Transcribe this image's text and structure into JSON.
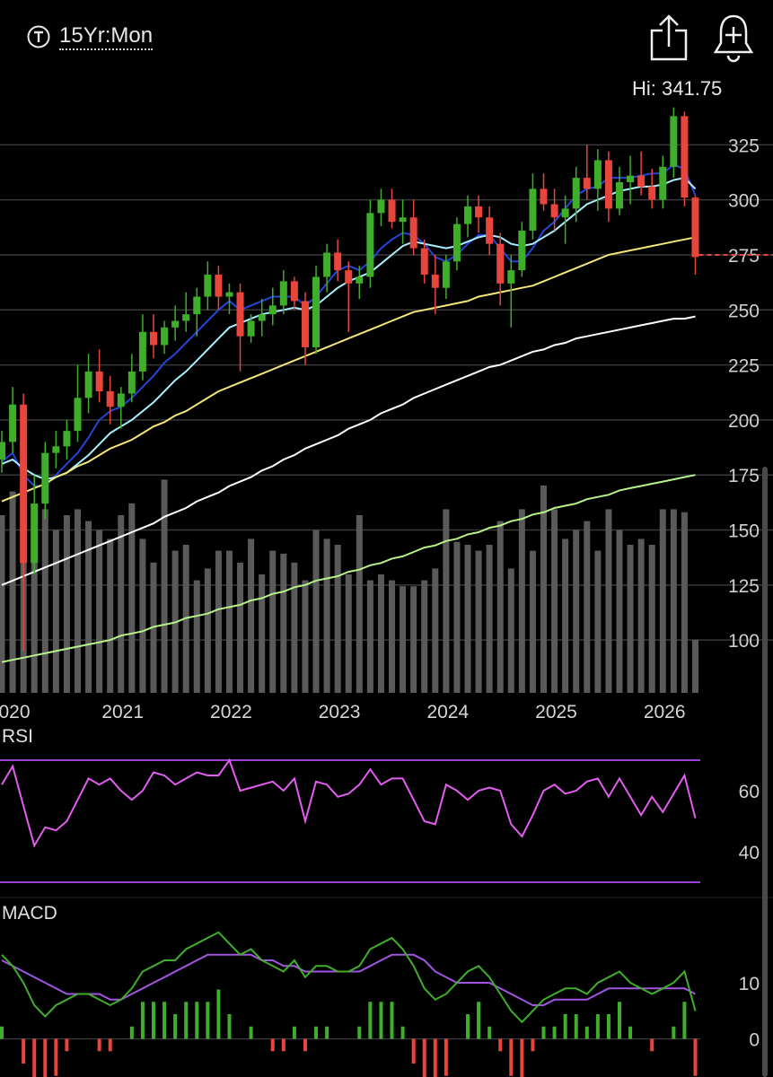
{
  "header": {
    "interval_label": "15Yr:Mon",
    "icons": {
      "interval": "clock-icon",
      "share": "share-icon",
      "alert": "bell-plus-icon"
    }
  },
  "hi_label": "Hi: 341.75",
  "colors": {
    "up": "#3fae2a",
    "down": "#e8453c",
    "sma_blue": "#2346d8",
    "sma_cyan": "#a8f0ff",
    "sma_yellow": "#f3e77a",
    "sma_white": "#ffffff",
    "sma_green": "#b8f28a",
    "rsi": "#e45cf0",
    "rsi_band": "#9a40d8",
    "macd": "#3fae2a",
    "signal": "#a155e0"
  },
  "chart_data": [
    {
      "type": "candlestick",
      "title": "",
      "x_ticks": [
        "020",
        "2021",
        "2022",
        "2023",
        "2024",
        "2025",
        "2026"
      ],
      "x_tick_pos": [
        0,
        10,
        20,
        30,
        40,
        50,
        60
      ],
      "y_ticks": [
        325,
        300,
        275,
        250,
        225,
        200,
        175,
        150,
        125,
        100
      ],
      "ylim": [
        76,
        350
      ],
      "grid": true,
      "last_price": 275,
      "candles": [
        [
          182,
          195,
          176,
          190
        ],
        [
          190,
          215,
          185,
          207
        ],
        [
          207,
          212,
          95,
          135
        ],
        [
          135,
          175,
          130,
          162
        ],
        [
          162,
          190,
          155,
          185
        ],
        [
          185,
          195,
          178,
          188
        ],
        [
          188,
          200,
          182,
          195
        ],
        [
          195,
          225,
          190,
          210
        ],
        [
          210,
          230,
          203,
          222
        ],
        [
          222,
          232,
          208,
          213
        ],
        [
          213,
          220,
          198,
          206
        ],
        [
          206,
          215,
          196,
          212
        ],
        [
          212,
          230,
          208,
          222
        ],
        [
          222,
          248,
          218,
          240
        ],
        [
          240,
          248,
          228,
          234
        ],
        [
          234,
          245,
          230,
          242
        ],
        [
          242,
          252,
          236,
          245
        ],
        [
          245,
          258,
          240,
          248
        ],
        [
          248,
          260,
          238,
          256
        ],
        [
          256,
          272,
          250,
          266
        ],
        [
          266,
          270,
          250,
          256
        ],
        [
          256,
          262,
          248,
          258
        ],
        [
          258,
          262,
          222,
          238
        ],
        [
          238,
          248,
          235,
          245
        ],
        [
          245,
          255,
          238,
          248
        ],
        [
          248,
          260,
          243,
          252
        ],
        [
          252,
          268,
          248,
          263
        ],
        [
          263,
          265,
          250,
          254
        ],
        [
          254,
          258,
          225,
          233
        ],
        [
          233,
          270,
          230,
          265
        ],
        [
          265,
          280,
          258,
          276
        ],
        [
          276,
          282,
          263,
          268
        ],
        [
          268,
          272,
          240,
          262
        ],
        [
          262,
          270,
          255,
          265
        ],
        [
          265,
          300,
          260,
          294
        ],
        [
          294,
          305,
          288,
          300
        ],
        [
          300,
          305,
          287,
          290
        ],
        [
          290,
          300,
          280,
          292
        ],
        [
          292,
          300,
          275,
          278
        ],
        [
          278,
          282,
          262,
          266
        ],
        [
          266,
          275,
          248,
          260
        ],
        [
          260,
          275,
          255,
          272
        ],
        [
          272,
          292,
          268,
          289
        ],
        [
          289,
          302,
          283,
          297
        ],
        [
          297,
          302,
          285,
          292
        ],
        [
          292,
          297,
          275,
          280
        ],
        [
          280,
          285,
          252,
          262
        ],
        [
          262,
          275,
          242,
          268
        ],
        [
          268,
          290,
          265,
          286
        ],
        [
          286,
          312,
          282,
          305
        ],
        [
          305,
          312,
          295,
          298
        ],
        [
          298,
          305,
          286,
          292
        ],
        [
          292,
          302,
          280,
          296
        ],
        [
          296,
          315,
          290,
          310
        ],
        [
          310,
          325,
          300,
          305
        ],
        [
          305,
          323,
          295,
          318
        ],
        [
          318,
          322,
          290,
          296
        ],
        [
          296,
          315,
          293,
          308
        ],
        [
          308,
          320,
          298,
          311
        ],
        [
          311,
          322,
          302,
          306
        ],
        [
          306,
          314,
          296,
          300
        ],
        [
          300,
          320,
          296,
          315
        ],
        [
          315,
          342,
          310,
          338
        ],
        [
          338,
          340,
          297,
          301
        ],
        [
          301,
          302,
          266,
          274
        ]
      ],
      "sma_series": [
        {
          "values": [
            181,
            185,
            175,
            170,
            170,
            175,
            180,
            185,
            192,
            200,
            204,
            206,
            210,
            215,
            220,
            226,
            230,
            235,
            240,
            245,
            250,
            254,
            250,
            252,
            254,
            256,
            256,
            256,
            252,
            256,
            262,
            268,
            270,
            268,
            272,
            278,
            282,
            285,
            284,
            280,
            274,
            272,
            275,
            280,
            284,
            284,
            278,
            272,
            272,
            278,
            286,
            290,
            296,
            302,
            305,
            306,
            310,
            310,
            310,
            311,
            312,
            312,
            316,
            314,
            302
          ]
        },
        {
          "values": [
            180,
            182,
            178,
            175,
            173,
            174,
            176,
            180,
            184,
            189,
            194,
            197,
            200,
            204,
            208,
            213,
            218,
            222,
            227,
            232,
            237,
            242,
            244,
            246,
            248,
            249,
            250,
            251,
            250,
            252,
            256,
            260,
            263,
            265,
            267,
            271,
            275,
            279,
            281,
            280,
            279,
            278,
            279,
            281,
            283,
            284,
            283,
            280,
            279,
            280,
            283,
            286,
            290,
            294,
            298,
            300,
            302,
            304,
            305,
            306,
            306,
            307,
            309,
            310,
            305
          ]
        },
        {
          "values": [
            163,
            165,
            167,
            169,
            171,
            174,
            176,
            179,
            181,
            184,
            187,
            189,
            191,
            194,
            197,
            199,
            202,
            204,
            207,
            210,
            213,
            215,
            217,
            219,
            221,
            223,
            225,
            227,
            229,
            231,
            233,
            235,
            237,
            239,
            241,
            243,
            245,
            247,
            249,
            250,
            251,
            252,
            253,
            254,
            256,
            257,
            258,
            259,
            260,
            261,
            263,
            265,
            267,
            269,
            271,
            273,
            275,
            276,
            277,
            278,
            279,
            280,
            281,
            282,
            283
          ]
        },
        {
          "values": [
            125,
            127,
            129,
            131,
            133,
            135,
            137,
            139,
            141,
            143,
            145,
            147,
            149,
            151,
            153,
            156,
            158,
            160,
            163,
            165,
            167,
            170,
            172,
            174,
            177,
            179,
            182,
            184,
            187,
            189,
            191,
            193,
            196,
            198,
            200,
            203,
            205,
            207,
            210,
            212,
            214,
            216,
            218,
            220,
            222,
            224,
            225,
            227,
            229,
            231,
            232,
            234,
            235,
            237,
            238,
            239,
            240,
            241,
            242,
            243,
            244,
            245,
            246,
            246,
            247
          ]
        },
        {
          "values": [
            90,
            91,
            92,
            93,
            94,
            95,
            96,
            97,
            98,
            99,
            100,
            102,
            103,
            104,
            106,
            107,
            108,
            110,
            111,
            112,
            114,
            115,
            116,
            118,
            119,
            121,
            122,
            124,
            125,
            127,
            128,
            129,
            131,
            132,
            134,
            135,
            137,
            138,
            140,
            142,
            143,
            145,
            146,
            148,
            149,
            151,
            152,
            154,
            155,
            157,
            158,
            160,
            161,
            162,
            164,
            165,
            166,
            168,
            169,
            170,
            171,
            172,
            173,
            174,
            175
          ]
        }
      ],
      "volume": [
        60,
        68,
        88,
        58,
        62,
        55,
        60,
        62,
        58,
        55,
        52,
        60,
        64,
        52,
        44,
        72,
        48,
        50,
        38,
        42,
        48,
        48,
        44,
        52,
        40,
        48,
        47,
        44,
        38,
        55,
        52,
        50,
        40,
        60,
        38,
        40,
        38,
        36,
        36,
        38,
        42,
        62,
        51,
        50,
        48,
        50,
        58,
        42,
        62,
        48,
        70,
        62,
        52,
        55,
        58,
        48,
        62,
        55,
        50,
        52,
        50,
        62,
        62,
        61,
        18
      ]
    },
    {
      "type": "line",
      "title": "RSI",
      "y_ticks": [
        60,
        40
      ],
      "levels": [
        70,
        30
      ],
      "ylim": [
        25,
        75
      ],
      "values": [
        62,
        68,
        55,
        42,
        48,
        47,
        50,
        57,
        64,
        62,
        64,
        60,
        57,
        60,
        66,
        65,
        62,
        64,
        66,
        65,
        65,
        70,
        60,
        61,
        62,
        63,
        60,
        64,
        50,
        63,
        62,
        58,
        59,
        62,
        67,
        62,
        64,
        64,
        57,
        50,
        49,
        62,
        60,
        57,
        60,
        61,
        60,
        49,
        45,
        52,
        60,
        62,
        59,
        60,
        63,
        64,
        58,
        64,
        58,
        52,
        58,
        53,
        59,
        65,
        51
      ]
    },
    {
      "type": "line",
      "title": "MACD",
      "y_ticks": [
        10,
        0
      ],
      "ylim": [
        -6,
        22
      ],
      "macd": [
        15,
        13,
        10,
        6,
        4,
        6,
        7,
        8,
        8,
        7,
        6,
        7,
        9,
        12,
        13,
        14,
        14,
        16,
        17,
        18,
        19,
        17,
        15,
        16,
        14,
        13,
        12,
        14,
        11,
        13,
        13,
        12,
        12,
        13,
        16,
        17,
        18,
        16,
        13,
        9,
        7,
        8,
        10,
        12,
        13,
        11,
        8,
        5,
        3,
        5,
        7,
        8,
        9,
        9,
        8,
        10,
        11,
        12,
        10,
        9,
        8,
        9,
        10,
        12,
        5
      ],
      "signal": [
        14,
        13,
        12,
        11,
        10,
        9,
        8,
        8,
        8,
        8,
        7,
        7,
        8,
        9,
        10,
        11,
        12,
        13,
        14,
        15,
        15,
        15,
        15,
        15,
        14,
        14,
        13,
        13,
        12,
        12,
        12,
        12,
        12,
        12,
        13,
        14,
        15,
        15,
        15,
        14,
        12,
        11,
        10,
        10,
        10,
        10,
        9,
        8,
        7,
        6,
        6,
        7,
        7,
        7,
        7,
        8,
        9,
        9,
        9,
        9,
        9,
        9,
        9,
        9,
        8
      ]
    }
  ]
}
